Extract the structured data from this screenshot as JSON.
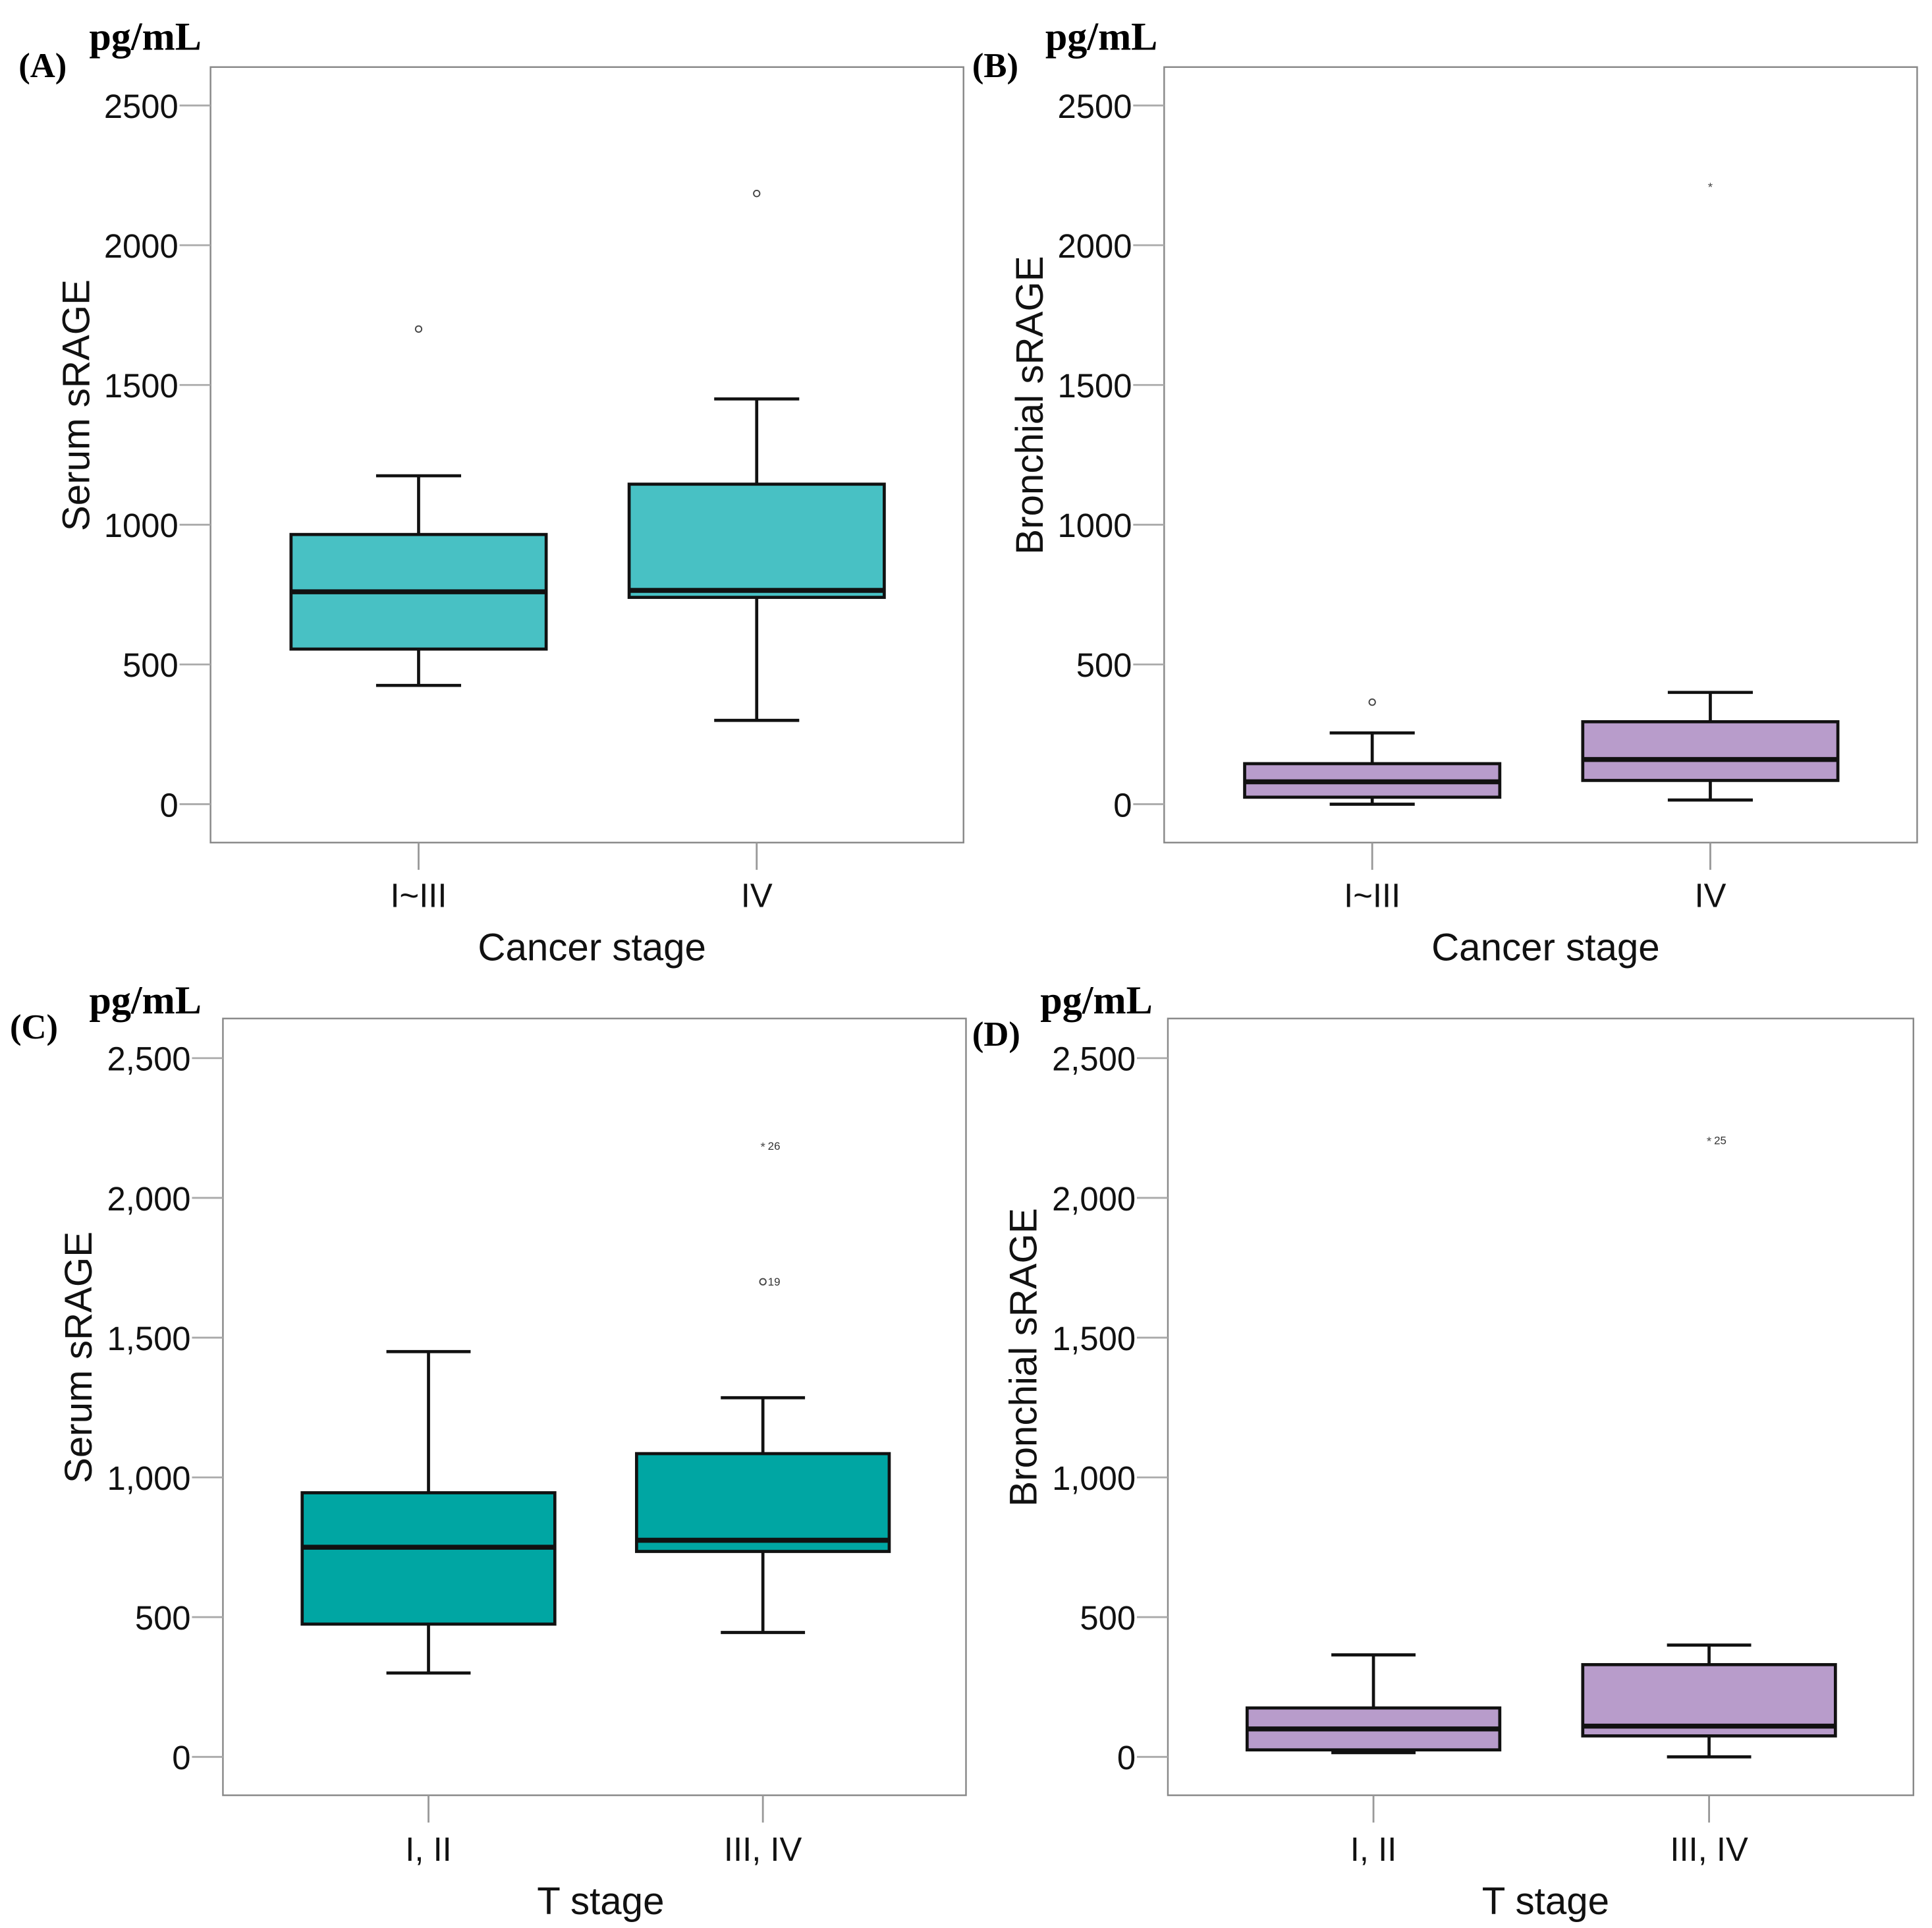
{
  "chart_data": [
    {
      "type": "box",
      "panel_label": "(A)",
      "unit": "pg/mL",
      "ylabel": "Serum sRAGE",
      "xlabel": "Cancer stage",
      "ylim": [
        0,
        2500
      ],
      "yticks": [
        "0",
        "500",
        "1000",
        "1500",
        "2000",
        "2500"
      ],
      "yvals": [
        0,
        500,
        1000,
        1500,
        2000,
        2500
      ],
      "color": "#48c1c4",
      "groups": [
        {
          "name": "I~III",
          "whisker_low": 425,
          "q1": 555,
          "median": 760,
          "q3": 965,
          "whisker_high": 1175,
          "outliers": [
            {
              "value": 1700,
              "marker": "circle",
              "label": ""
            }
          ]
        },
        {
          "name": "IV",
          "whisker_low": 300,
          "q1": 740,
          "median": 765,
          "q3": 1145,
          "whisker_high": 1450,
          "outliers": [
            {
              "value": 2185,
              "marker": "circle",
              "label": ""
            }
          ]
        }
      ]
    },
    {
      "type": "box",
      "panel_label": "(B)",
      "unit": "pg/mL",
      "ylabel": "Bronchial sRAGE",
      "xlabel": "Cancer stage",
      "ylim": [
        0,
        2500
      ],
      "yticks": [
        "0",
        "500",
        "1000",
        "1500",
        "2000",
        "2500"
      ],
      "yvals": [
        0,
        500,
        1000,
        1500,
        2000,
        2500
      ],
      "color": "#b89ccb",
      "groups": [
        {
          "name": "I~III",
          "whisker_low": 0,
          "q1": 25,
          "median": 80,
          "q3": 145,
          "whisker_high": 255,
          "outliers": [
            {
              "value": 365,
              "marker": "circle",
              "label": ""
            }
          ]
        },
        {
          "name": "IV",
          "whisker_low": 15,
          "q1": 85,
          "median": 160,
          "q3": 295,
          "whisker_high": 400,
          "outliers": [
            {
              "value": 2210,
              "marker": "star",
              "label": ""
            }
          ]
        }
      ]
    },
    {
      "type": "box",
      "panel_label": "(C)",
      "unit": "pg/mL",
      "ylabel": "Serum sRAGE",
      "xlabel": "T stage",
      "ylim": [
        0,
        2500
      ],
      "yticks": [
        "0",
        "500",
        "1,000",
        "1,500",
        "2,000",
        "2,500"
      ],
      "yvals": [
        0,
        500,
        1000,
        1500,
        2000,
        2500
      ],
      "color": "#00a6a3",
      "groups": [
        {
          "name": "I, II",
          "whisker_low": 300,
          "q1": 475,
          "median": 750,
          "q3": 945,
          "whisker_high": 1450,
          "outliers": []
        },
        {
          "name": "III, IV",
          "whisker_low": 445,
          "q1": 735,
          "median": 775,
          "q3": 1085,
          "whisker_high": 1285,
          "outliers": [
            {
              "value": 2185,
              "marker": "star",
              "label": "26"
            },
            {
              "value": 1700,
              "marker": "circle",
              "label": "19"
            }
          ]
        }
      ]
    },
    {
      "type": "box",
      "panel_label": "(D)",
      "unit": "pg/mL",
      "ylabel": "Bronchial sRAGE",
      "xlabel": "T stage",
      "ylim": [
        0,
        2500
      ],
      "yticks": [
        "0",
        "500",
        "1,000",
        "1,500",
        "2,000",
        "2,500"
      ],
      "yvals": [
        0,
        500,
        1000,
        1500,
        2000,
        2500
      ],
      "color": "#b89ccb",
      "groups": [
        {
          "name": "I, II",
          "whisker_low": 15,
          "q1": 25,
          "median": 100,
          "q3": 175,
          "whisker_high": 365,
          "outliers": []
        },
        {
          "name": "III, IV",
          "whisker_low": 0,
          "q1": 75,
          "median": 110,
          "q3": 330,
          "whisker_high": 400,
          "outliers": [
            {
              "value": 2205,
              "marker": "star",
              "label": "25"
            }
          ]
        }
      ]
    }
  ]
}
